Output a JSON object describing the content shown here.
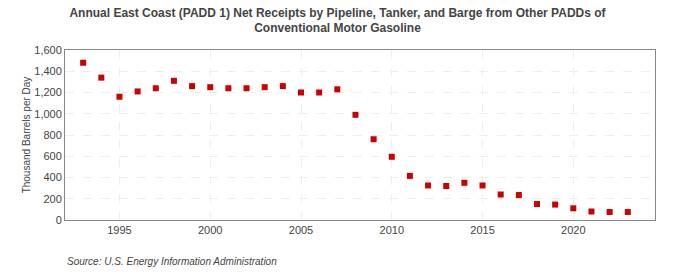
{
  "chart_data": {
    "type": "scatter",
    "title": "Annual East Coast (PADD 1) Net Receipts by Pipeline, Tanker, and Barge from Other PADDs of\nConventional Motor Gasoline",
    "ylabel": "Thousand Barrels per Day",
    "annotations": [
      "Source: U.S. Energy Information Administration"
    ],
    "x": [
      1993,
      1994,
      1995,
      1996,
      1997,
      1998,
      1999,
      2000,
      2001,
      2002,
      2003,
      2004,
      2005,
      2006,
      2007,
      2008,
      2009,
      2010,
      2011,
      2012,
      2013,
      2014,
      2015,
      2016,
      2017,
      2018,
      2019,
      2020,
      2021,
      2022,
      2023
    ],
    "values": [
      1480,
      1340,
      1160,
      1210,
      1240,
      1310,
      1260,
      1250,
      1240,
      1240,
      1250,
      1260,
      1200,
      1200,
      1230,
      990,
      760,
      595,
      415,
      325,
      320,
      350,
      325,
      240,
      235,
      150,
      145,
      110,
      80,
      75,
      75
    ],
    "color": "#cc0000",
    "marker": "square",
    "xlim": [
      1992,
      2024.5
    ],
    "xticks": [
      1995,
      2000,
      2005,
      2010,
      2015,
      2020
    ],
    "ylim": [
      0,
      1600
    ],
    "yticks": [
      0,
      200,
      400,
      600,
      800,
      {
        "value": 1000,
        "label": "1,000"
      },
      {
        "value": 1200,
        "label": "1,200"
      },
      {
        "value": 1400,
        "label": "1,400"
      },
      {
        "value": 1600,
        "label": "1,600"
      }
    ],
    "grid": true
  }
}
